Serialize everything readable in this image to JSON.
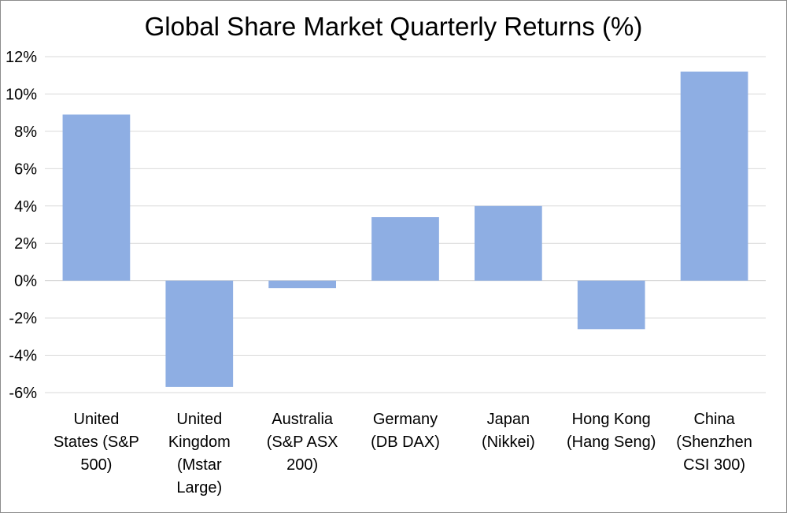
{
  "chart_data": {
    "type": "bar",
    "title": "Global Share Market Quarterly Returns (%)",
    "xlabel": "",
    "ylabel": "",
    "ylim": [
      -6,
      12
    ],
    "ytick_step": 2,
    "ytick_labels": [
      "12%",
      "10%",
      "8%",
      "6%",
      "4%",
      "2%",
      "0%",
      "-2%",
      "-4%",
      "-6%"
    ],
    "grid": true,
    "legend": "none",
    "bar_color": "#8eaee3",
    "grid_color": "#d9d9d9",
    "categories": [
      [
        "United",
        "States (S&P",
        "500)"
      ],
      [
        "United",
        "Kingdom",
        "(Mstar",
        "Large)"
      ],
      [
        "Australia",
        "(S&P ASX",
        "200)"
      ],
      [
        "Germany",
        "(DB DAX)"
      ],
      [
        "Japan",
        "(Nikkei)"
      ],
      [
        "Hong Kong",
        "(Hang Seng)"
      ],
      [
        "China",
        "(Shenzhen",
        "CSI 300)"
      ]
    ],
    "values": [
      8.9,
      -5.7,
      -0.4,
      3.4,
      4.0,
      -2.6,
      11.2
    ]
  }
}
